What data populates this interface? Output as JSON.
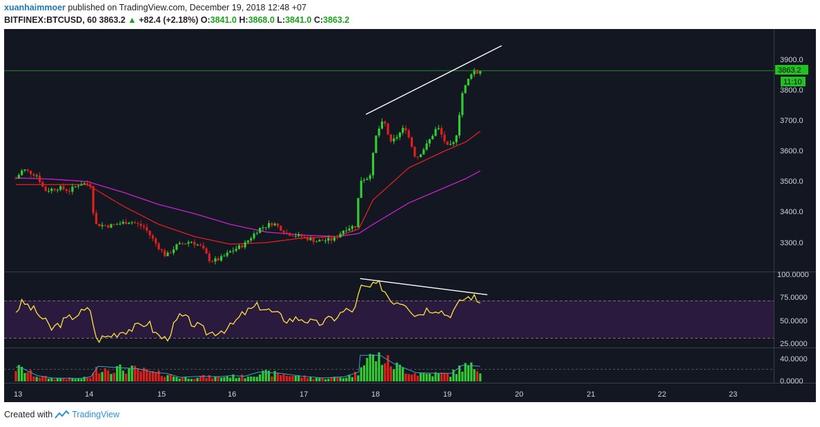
{
  "header": {
    "author": "xuanhaimmoer",
    "published_text": "published on TradingView.com, December 19, 2018 12:48 +07",
    "symbol": "BITFINEX:BTCUSD, 60",
    "last": "3863.2",
    "change_arrow": "▲",
    "change": "+82.4 (+2.18%)",
    "ohlc": [
      {
        "label": "O:",
        "value": "3841.0"
      },
      {
        "label": "H:",
        "value": "3868.0"
      },
      {
        "label": "L:",
        "value": "3841.0"
      },
      {
        "label": "C:",
        "value": "3863.2"
      }
    ]
  },
  "price_axis": {
    "ticks": [
      "3900.0",
      "3800.0",
      "3700.0",
      "3600.0",
      "3500.0",
      "3400.0",
      "3300.0"
    ],
    "price_label": "3863.2",
    "countdown_label": "11:10"
  },
  "rsi_axis": {
    "ticks": [
      "100.0000",
      "75.0000",
      "50.0000",
      "25.0000"
    ]
  },
  "volume_axis": {
    "ticks": [
      "40.0000",
      "0.0000"
    ]
  },
  "time_axis": {
    "labels": [
      "13",
      "14",
      "15",
      "16",
      "17",
      "18",
      "19",
      "20",
      "21",
      "22",
      "23"
    ]
  },
  "colors": {
    "background": "#131722",
    "up": "#33cc33",
    "down": "#e0201b",
    "ema_fast": "#e02020",
    "ema_slow": "#cc22cc",
    "rsi": "#ffe340",
    "rsi_band": "#2a1a3d",
    "trendline": "#ffffff",
    "last_price_line": "#1e8a1e"
  },
  "footer": {
    "created_text": "Created with",
    "brand": "TradingView",
    "logo_icon": "tradingview-logo-icon"
  },
  "chart_data": {
    "type": "candlestick",
    "panes": [
      {
        "name": "price",
        "y_range": [
          3215,
          3985
        ],
        "keyframes": [
          {
            "day": 13.0,
            "price": 3510
          },
          {
            "day": 13.1,
            "price": 3540
          },
          {
            "day": 13.3,
            "price": 3520
          },
          {
            "day": 13.4,
            "price": 3470
          },
          {
            "day": 13.6,
            "price": 3480
          },
          {
            "day": 13.75,
            "price": 3470
          },
          {
            "day": 13.9,
            "price": 3495
          },
          {
            "day": 14.05,
            "price": 3490
          },
          {
            "day": 14.1,
            "price": 3360
          },
          {
            "day": 14.3,
            "price": 3355
          },
          {
            "day": 14.6,
            "price": 3370
          },
          {
            "day": 14.8,
            "price": 3350
          },
          {
            "day": 14.95,
            "price": 3300
          },
          {
            "day": 15.1,
            "price": 3255
          },
          {
            "day": 15.25,
            "price": 3290
          },
          {
            "day": 15.45,
            "price": 3305
          },
          {
            "day": 15.6,
            "price": 3285
          },
          {
            "day": 15.72,
            "price": 3240
          },
          {
            "day": 15.85,
            "price": 3245
          },
          {
            "day": 16.0,
            "price": 3270
          },
          {
            "day": 16.2,
            "price": 3295
          },
          {
            "day": 16.4,
            "price": 3345
          },
          {
            "day": 16.6,
            "price": 3365
          },
          {
            "day": 16.8,
            "price": 3330
          },
          {
            "day": 17.0,
            "price": 3320
          },
          {
            "day": 17.2,
            "price": 3305
          },
          {
            "day": 17.45,
            "price": 3310
          },
          {
            "day": 17.6,
            "price": 3345
          },
          {
            "day": 17.75,
            "price": 3355
          },
          {
            "day": 17.82,
            "price": 3505
          },
          {
            "day": 17.95,
            "price": 3515
          },
          {
            "day": 18.05,
            "price": 3660
          },
          {
            "day": 18.15,
            "price": 3700
          },
          {
            "day": 18.25,
            "price": 3625
          },
          {
            "day": 18.45,
            "price": 3680
          },
          {
            "day": 18.6,
            "price": 3575
          },
          {
            "day": 18.75,
            "price": 3620
          },
          {
            "day": 18.9,
            "price": 3680
          },
          {
            "day": 19.05,
            "price": 3610
          },
          {
            "day": 19.15,
            "price": 3630
          },
          {
            "day": 19.25,
            "price": 3790
          },
          {
            "day": 19.4,
            "price": 3870
          },
          {
            "day": 19.45,
            "price": 3855
          },
          {
            "day": 19.5,
            "price": 3863
          }
        ],
        "ema_fast": [
          [
            13.0,
            3490
          ],
          [
            13.5,
            3490
          ],
          [
            14.0,
            3490
          ],
          [
            14.5,
            3420
          ],
          [
            15.0,
            3360
          ],
          [
            15.5,
            3320
          ],
          [
            16.0,
            3295
          ],
          [
            16.5,
            3300
          ],
          [
            17.0,
            3315
          ],
          [
            17.5,
            3320
          ],
          [
            17.8,
            3345
          ],
          [
            18.0,
            3440
          ],
          [
            18.5,
            3545
          ],
          [
            19.0,
            3600
          ],
          [
            19.3,
            3630
          ],
          [
            19.5,
            3665
          ]
        ],
        "ema_slow": [
          [
            13.0,
            3512
          ],
          [
            13.5,
            3508
          ],
          [
            14.0,
            3500
          ],
          [
            14.5,
            3465
          ],
          [
            15.0,
            3425
          ],
          [
            15.5,
            3395
          ],
          [
            16.0,
            3360
          ],
          [
            16.5,
            3335
          ],
          [
            17.0,
            3325
          ],
          [
            17.5,
            3320
          ],
          [
            17.8,
            3330
          ],
          [
            18.0,
            3360
          ],
          [
            18.5,
            3430
          ],
          [
            19.0,
            3480
          ],
          [
            19.3,
            3510
          ],
          [
            19.5,
            3535
          ]
        ],
        "trendline": [
          [
            17.9,
            3720
          ],
          [
            19.8,
            3945
          ]
        ],
        "last_price": 3863.2
      },
      {
        "name": "rsi",
        "y_range": [
          20,
          100
        ],
        "overbought": 70,
        "oversold": 30,
        "keyframes": [
          [
            13.0,
            60
          ],
          [
            13.1,
            70
          ],
          [
            13.3,
            58
          ],
          [
            13.5,
            40
          ],
          [
            13.7,
            50
          ],
          [
            13.9,
            58
          ],
          [
            14.05,
            62
          ],
          [
            14.12,
            28
          ],
          [
            14.3,
            32
          ],
          [
            14.5,
            38
          ],
          [
            14.7,
            42
          ],
          [
            14.85,
            48
          ],
          [
            14.95,
            35
          ],
          [
            15.1,
            28
          ],
          [
            15.3,
            55
          ],
          [
            15.5,
            45
          ],
          [
            15.7,
            35
          ],
          [
            15.85,
            38
          ],
          [
            16.0,
            42
          ],
          [
            16.2,
            58
          ],
          [
            16.4,
            66
          ],
          [
            16.6,
            58
          ],
          [
            16.8,
            50
          ],
          [
            17.0,
            52
          ],
          [
            17.2,
            45
          ],
          [
            17.45,
            52
          ],
          [
            17.6,
            60
          ],
          [
            17.75,
            62
          ],
          [
            17.82,
            86
          ],
          [
            17.95,
            86
          ],
          [
            18.1,
            90
          ],
          [
            18.25,
            72
          ],
          [
            18.45,
            70
          ],
          [
            18.6,
            55
          ],
          [
            18.75,
            62
          ],
          [
            18.9,
            63
          ],
          [
            19.05,
            55
          ],
          [
            19.15,
            62
          ],
          [
            19.25,
            73
          ],
          [
            19.4,
            77
          ],
          [
            19.45,
            70
          ],
          [
            19.5,
            72
          ]
        ],
        "trendline": [
          [
            17.82,
            96
          ],
          [
            19.6,
            78
          ]
        ]
      },
      {
        "name": "volume",
        "y_range": [
          0,
          55
        ],
        "keyframes": [
          [
            13.0,
            25
          ],
          [
            13.1,
            22
          ],
          [
            13.3,
            10
          ],
          [
            13.5,
            6
          ],
          [
            13.9,
            5
          ],
          [
            14.05,
            8
          ],
          [
            14.15,
            26
          ],
          [
            14.4,
            24
          ],
          [
            14.7,
            22
          ],
          [
            14.95,
            15
          ],
          [
            15.1,
            14
          ],
          [
            15.3,
            7
          ],
          [
            15.6,
            9
          ],
          [
            15.85,
            8
          ],
          [
            16.0,
            10
          ],
          [
            16.2,
            9
          ],
          [
            16.4,
            16
          ],
          [
            16.7,
            14
          ],
          [
            17.0,
            9
          ],
          [
            17.3,
            6
          ],
          [
            17.6,
            8
          ],
          [
            17.8,
            16
          ],
          [
            17.82,
            45
          ],
          [
            18.1,
            45
          ],
          [
            18.3,
            30
          ],
          [
            18.6,
            15
          ],
          [
            18.9,
            14
          ],
          [
            19.1,
            14
          ],
          [
            19.25,
            28
          ],
          [
            19.5,
            26
          ]
        ]
      }
    ]
  }
}
